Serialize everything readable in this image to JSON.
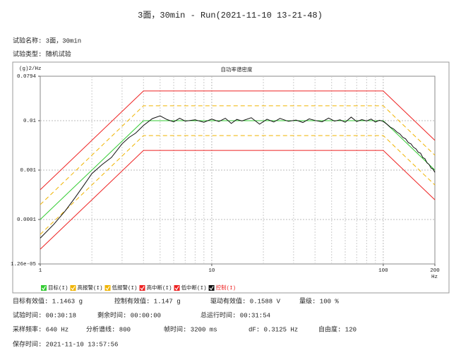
{
  "title": "3面，30min - Run(2021-11-10 13-21-48)",
  "info": [
    "试验名称: 3面，30min",
    "试验类型: 随机试验"
  ],
  "chart_data": {
    "type": "line",
    "title": "自功率谱密度",
    "y_label": "(g)2/Hz",
    "x_label": "Hz",
    "x_log": true,
    "y_log": true,
    "xlim": [
      1,
      200
    ],
    "ylim": [
      1.26e-05,
      0.0794
    ],
    "xticks": [
      1,
      10,
      100,
      200
    ],
    "x_minor_grid": [
      2,
      3,
      4,
      5,
      6,
      7,
      8,
      9,
      20,
      30,
      40,
      50,
      60,
      70,
      80,
      90
    ],
    "yticks": [
      {
        "value": 1.26e-05,
        "label": "1.26e-05"
      },
      0.0001,
      0.001,
      0.01,
      0.0794
    ],
    "grid": true,
    "legend": "bottom",
    "series": [
      {
        "name": "目标(I)",
        "color": "#33cc33",
        "style": "solid",
        "x": [
          1,
          4,
          100,
          200
        ],
        "values": [
          0.0001,
          0.01,
          0.01,
          0.001
        ]
      },
      {
        "name": "高报警(I)",
        "color": "#f0b400",
        "style": "dashed",
        "x": [
          1,
          4,
          100,
          200
        ],
        "values": [
          0.0002,
          0.02,
          0.02,
          0.002
        ]
      },
      {
        "name": "低报警(I)",
        "color": "#f0b400",
        "style": "dashed",
        "x": [
          1,
          4,
          100,
          200
        ],
        "values": [
          5e-05,
          0.005,
          0.005,
          0.0005
        ]
      },
      {
        "name": "高中断(I)",
        "color": "#ee2222",
        "style": "solid",
        "x": [
          1,
          4,
          100,
          200
        ],
        "values": [
          0.0004,
          0.04,
          0.04,
          0.004
        ]
      },
      {
        "name": "低中断(I)",
        "color": "#ee2222",
        "style": "solid",
        "x": [
          1,
          4,
          100,
          200
        ],
        "values": [
          2.5e-05,
          0.0025,
          0.0025,
          0.00025
        ]
      },
      {
        "name": "控制(I)",
        "color": "#111111",
        "style": "solid",
        "legend_text_color": "#ee2222",
        "x": [
          1,
          1.2,
          1.4,
          1.6,
          1.8,
          2,
          2.3,
          2.6,
          3,
          3.3,
          3.6,
          4,
          4.5,
          5,
          5.5,
          6,
          6.5,
          7,
          8,
          9,
          10,
          11,
          12,
          13,
          14,
          15,
          17,
          19,
          21,
          23,
          25,
          28,
          31,
          34,
          37,
          40,
          44,
          48,
          52,
          56,
          60,
          65,
          70,
          75,
          80,
          85,
          90,
          95,
          100,
          105,
          110,
          115,
          120,
          125,
          130,
          135,
          140,
          145,
          150,
          155,
          160,
          165,
          170,
          175,
          180,
          185,
          190,
          195,
          200
        ],
        "values": [
          4.2e-05,
          8e-05,
          0.00015,
          0.00028,
          0.0005,
          0.00085,
          0.0013,
          0.0018,
          0.0034,
          0.0046,
          0.0056,
          0.008,
          0.011,
          0.0125,
          0.0105,
          0.0095,
          0.0112,
          0.0098,
          0.0104,
          0.0093,
          0.0108,
          0.0096,
          0.0112,
          0.0088,
          0.0106,
          0.0099,
          0.0115,
          0.0085,
          0.0107,
          0.0094,
          0.0111,
          0.0097,
          0.0103,
          0.0092,
          0.0109,
          0.0101,
          0.0095,
          0.0113,
          0.0098,
          0.0104,
          0.0093,
          0.0118,
          0.0096,
          0.0105,
          0.0099,
          0.0108,
          0.0094,
          0.0102,
          0.0097,
          0.0085,
          0.0074,
          0.0068,
          0.0059,
          0.0054,
          0.0046,
          0.0043,
          0.0036,
          0.0034,
          0.0029,
          0.0027,
          0.0023,
          0.0022,
          0.0018,
          0.0017,
          0.0014,
          0.0013,
          0.0011,
          0.00105,
          0.0009
        ]
      }
    ]
  },
  "status": [
    [
      "目标有效值: 1.1463 g",
      "控制有效值: 1.147 g",
      "驱动有效值: 0.1588 V",
      "量级: 100 %"
    ],
    [
      "试验时间: 00:30:18",
      "剩余时间: 00:00:00",
      "总运行时间: 00:31:54"
    ],
    [
      "采样频率: 640 Hz",
      "分析谱线: 800",
      "帧时间: 3200 ms",
      "dF: 0.3125 Hz",
      "自由度: 120"
    ],
    [
      "保存时间: 2021-11-10 13:57:56"
    ]
  ]
}
